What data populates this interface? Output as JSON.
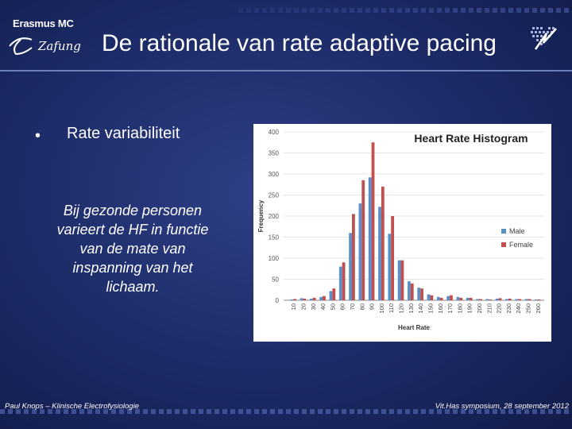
{
  "header": {
    "logo_text": "Erasmus MC",
    "logo_script": "Zafung",
    "title": "De rationale van rate adaptive pacing"
  },
  "content": {
    "bullet_symbol": "•",
    "bullet_text": "Rate variabiliteit",
    "italic_note": "Bij gezonde personen varieert de HF in functie van de mate van inspanning van het lichaam."
  },
  "footer": {
    "left": "Paul Knops – Klinische Electrofysiologie",
    "right": "Vit.Has symposium, 28 september 2012"
  },
  "chart_data": {
    "type": "bar",
    "title": "Heart Rate Histogram",
    "xlabel": "Heart Rate",
    "ylabel": "Frequency",
    "ylim": [
      0,
      400
    ],
    "yticks": [
      0,
      50,
      100,
      150,
      200,
      250,
      300,
      350,
      400
    ],
    "legend_position": "right",
    "categories": [
      "10",
      "20",
      "30",
      "40",
      "50",
      "60",
      "70",
      "80",
      "90",
      "100",
      "110",
      "120",
      "130",
      "140",
      "150",
      "160",
      "170",
      "180",
      "190",
      "200",
      "210",
      "220",
      "230",
      "240",
      "250",
      "260"
    ],
    "series": [
      {
        "name": "Male",
        "color": "#5b8fc9",
        "values": [
          2,
          5,
          4,
          8,
          22,
          80,
          160,
          230,
          292,
          222,
          158,
          95,
          45,
          30,
          14,
          8,
          10,
          8,
          6,
          3,
          3,
          4,
          3,
          3,
          3,
          2
        ]
      },
      {
        "name": "Female",
        "color": "#c0504d",
        "values": [
          3,
          4,
          6,
          10,
          28,
          90,
          205,
          285,
          375,
          270,
          200,
          95,
          40,
          28,
          12,
          6,
          12,
          6,
          6,
          3,
          2,
          5,
          4,
          3,
          3,
          2
        ]
      }
    ]
  }
}
